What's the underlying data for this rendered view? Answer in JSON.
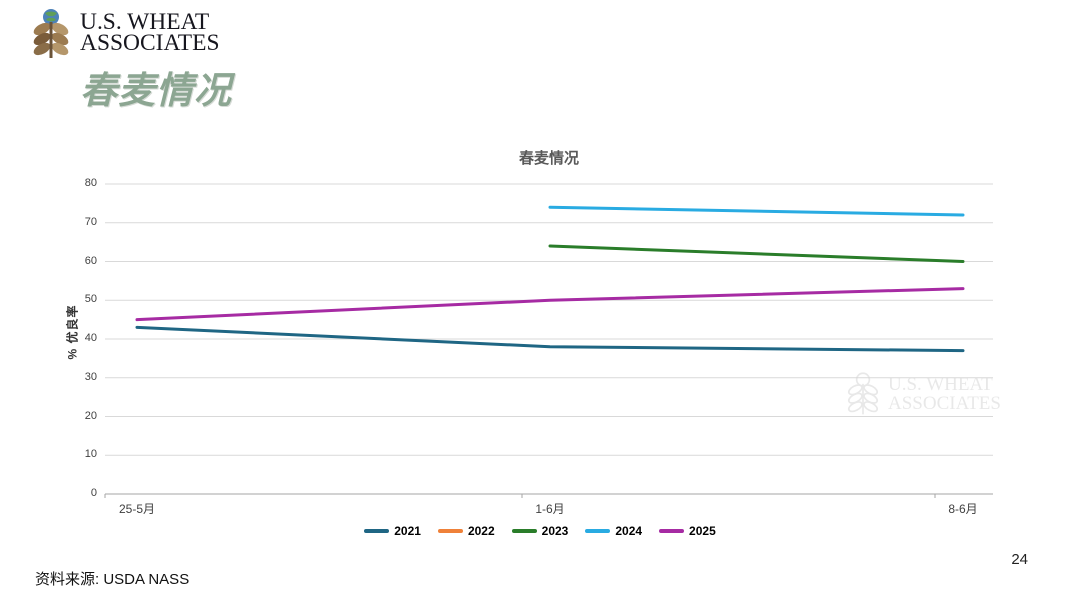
{
  "slide": {
    "page_title": "春麦情况",
    "page_number": "24",
    "source_note": "资料来源: USDA NASS",
    "logo": {
      "line1": "U.S. WHEAT",
      "line2": "ASSOCIATES"
    },
    "watermark": {
      "line1": "U.S. WHEAT",
      "line2": "ASSOCIATES"
    }
  },
  "chart_data": {
    "type": "line",
    "title": "春麦情况",
    "xlabel": "",
    "ylabel": "% 优良率",
    "ylim": [
      0,
      80
    ],
    "yticks": [
      0,
      10,
      20,
      30,
      40,
      50,
      60,
      70,
      80
    ],
    "grid": true,
    "legend_position": "bottom",
    "categories": [
      "25-5月",
      "1-6月",
      "8-6月"
    ],
    "series": [
      {
        "name": "2021",
        "color": "#1f6684",
        "values": [
          43,
          38,
          37
        ]
      },
      {
        "name": "2022",
        "color": "#ef8139",
        "values": [
          null,
          null,
          null
        ]
      },
      {
        "name": "2023",
        "color": "#2a7d2a",
        "values": [
          null,
          64,
          60
        ]
      },
      {
        "name": "2024",
        "color": "#29abe2",
        "values": [
          null,
          74,
          72
        ]
      },
      {
        "name": "2025",
        "color": "#a62ba3",
        "values": [
          45,
          50,
          53
        ]
      }
    ],
    "colors": {
      "gridline": "#d9d9d9",
      "axis_line": "#a6a6a6",
      "tick_text": "#3f3f3f",
      "title_text": "#595959"
    }
  }
}
